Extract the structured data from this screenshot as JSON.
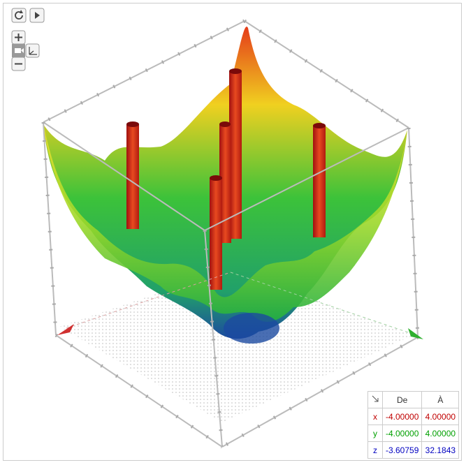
{
  "table": {
    "header": [
      "De",
      "À"
    ],
    "rows": [
      [
        "x",
        "-4.00000",
        "4.00000"
      ],
      [
        "y",
        "-4.00000",
        "4.00000"
      ],
      [
        "z",
        "-3.60759",
        "32.1843"
      ]
    ]
  }
}
